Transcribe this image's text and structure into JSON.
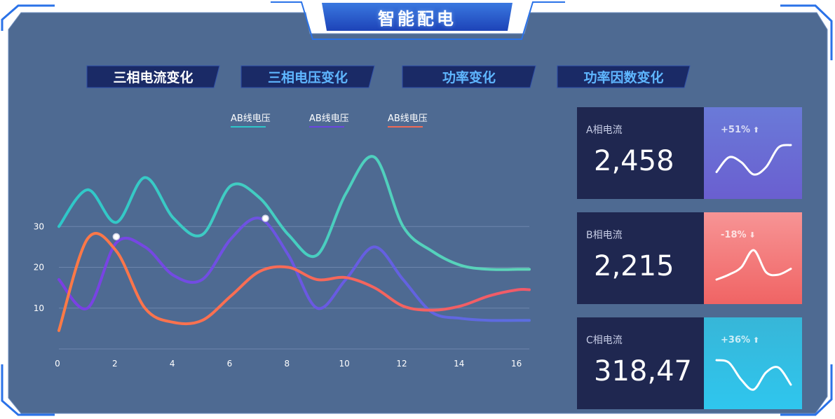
{
  "header": {
    "title": "智能配电"
  },
  "tabs": [
    {
      "label": "三相电流变化",
      "active": true
    },
    {
      "label": "三相电压变化",
      "active": false
    },
    {
      "label": "功率变化",
      "active": false
    },
    {
      "label": "功率因数变化",
      "active": false
    }
  ],
  "chart_data": {
    "type": "line",
    "smooth": true,
    "legend_position": "top",
    "grid": "horizontal",
    "x": [
      0,
      1,
      2,
      3,
      4,
      5,
      6,
      7,
      8,
      9,
      10,
      11,
      12,
      13,
      14,
      15,
      16,
      16.4
    ],
    "xticks": [
      "0",
      "2",
      "4",
      "6",
      "8",
      "10",
      "12",
      "14",
      "16"
    ],
    "xlim": [
      0,
      16.4
    ],
    "yticks": [
      "10",
      "20",
      "30"
    ],
    "ylim": [
      0,
      40
    ],
    "series": [
      {
        "name": "AB线电压",
        "color_start": "#2ec7c9",
        "color_end": "#5fd4b8",
        "values": [
          30,
          39,
          31,
          42,
          32,
          28,
          40,
          37,
          28,
          23,
          38,
          47,
          30,
          24,
          20.5,
          19.5,
          19.5,
          19.5
        ]
      },
      {
        "name": "AB线电压",
        "color_start": "#7b3fe4",
        "color_end": "#5b6ee0",
        "values": [
          17,
          10,
          26,
          25,
          18,
          17,
          27,
          32,
          23,
          10,
          17,
          25,
          17,
          9,
          7.5,
          7,
          7,
          7
        ]
      },
      {
        "name": "AB线电压",
        "color_start": "#ff7a45",
        "color_end": "#f05a6a",
        "values": [
          4.5,
          27,
          24,
          10,
          6.5,
          7,
          13,
          19,
          20,
          17,
          17.5,
          15,
          10.5,
          9.5,
          10.5,
          13,
          14.5,
          14.5
        ]
      }
    ],
    "highlight_points": [
      {
        "series": 2,
        "x": 2,
        "y": 27.5
      },
      {
        "series": 1,
        "x": 7.2,
        "y": 32
      }
    ]
  },
  "cards": [
    {
      "name": "A相电流",
      "value": "2,458",
      "change": "+51%",
      "direction": "up",
      "panel_color_top": "#6a7ad8",
      "panel_color_bottom": "#6a5fd0",
      "spark": [
        0.25,
        0.55,
        0.45,
        0.2,
        0.35,
        0.75,
        0.8
      ]
    },
    {
      "name": "B相电流",
      "value": "2,215",
      "change": "-18%",
      "direction": "down",
      "panel_color_top": "#f79495",
      "panel_color_bottom": "#f06464",
      "spark": [
        0.2,
        0.3,
        0.45,
        0.8,
        0.35,
        0.3,
        0.42
      ]
    },
    {
      "name": "C相电流",
      "value": "318,47",
      "change": "+36%",
      "direction": "up",
      "panel_color_top": "#37b6d8",
      "panel_color_bottom": "#2fc6ee",
      "spark": [
        0.7,
        0.65,
        0.3,
        0.1,
        0.45,
        0.55,
        0.2
      ]
    }
  ]
}
